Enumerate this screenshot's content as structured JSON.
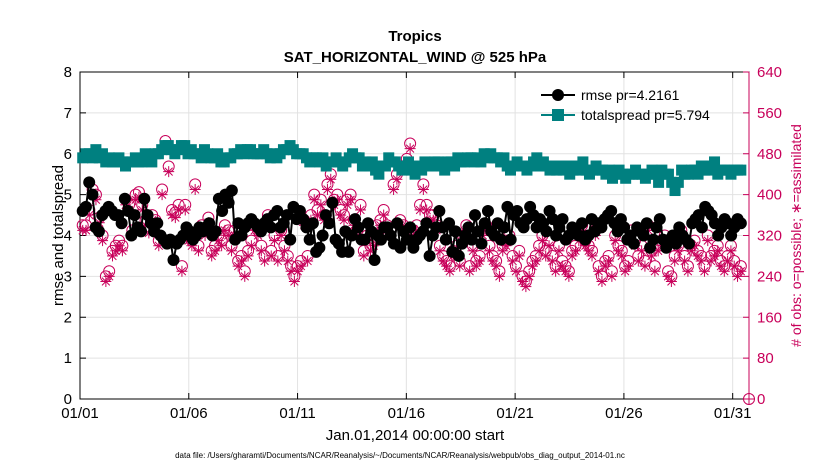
{
  "chart_data": {
    "type": "line",
    "title": "Tropics",
    "subtitle": "SAT_HORIZONTAL_WIND @ 525 hPa",
    "xlabel": "Jan.01,2014 00:00:00 start",
    "ylabel": "rmse and totalspread",
    "ylabel_right": "# of obs: o=possible; ∗=assimilated",
    "footer": "data file: /Users/gharamti/Documents/NCAR/Reanalysis/~/Documents/NCAR/Reanalysis/webpub/obs_diag_output_2014-01.nc",
    "x_unit": "days since Jan 01 00:00",
    "xlim": [
      0,
      30.75
    ],
    "ylim": [
      0,
      8
    ],
    "ylim_right": [
      0,
      640
    ],
    "x_ticks": [
      0,
      5,
      10,
      15,
      20,
      25,
      30
    ],
    "x_tick_labels": [
      "01/01",
      "01/06",
      "01/11",
      "01/16",
      "01/21",
      "01/26",
      "01/31"
    ],
    "y_ticks": [
      0,
      1,
      2,
      3,
      4,
      5,
      6,
      7,
      8
    ],
    "y_ticks_right": [
      0,
      80,
      160,
      240,
      320,
      400,
      480,
      560,
      640
    ],
    "grid": true,
    "legend_position": "top-right",
    "colors": {
      "rmse": "#000000",
      "totalspread": "#008080",
      "obs": "#c8005a"
    },
    "series": [
      {
        "name": "rmse pr=4.2161",
        "color": "#000000",
        "marker": "circle",
        "values": [
          4.6,
          4.7,
          5.3,
          5.0,
          4.2,
          4.1,
          4.5,
          4.6,
          4.7,
          4.6,
          4.5,
          4.5,
          4.3,
          4.9,
          4.6,
          4.0,
          4.5,
          4.2,
          4.1,
          4.9,
          4.5,
          4.3,
          4.1,
          4.3,
          4.0,
          3.9,
          3.8,
          3.9,
          3.4,
          3.8,
          3.9,
          4.0,
          4.2,
          4.1,
          3.9,
          4.0,
          4.2,
          4.1,
          4.2,
          4.3,
          4.0,
          4.1,
          4.9,
          4.6,
          5.0,
          4.8,
          5.1,
          3.9,
          4.3,
          4.0,
          4.2,
          4.3,
          4.4,
          4.3,
          4.2,
          4.1,
          4.3,
          4.4,
          4.2,
          4.5,
          4.6,
          4.2,
          4.3,
          4.5,
          3.9,
          4.7,
          4.4,
          4.6,
          4.4,
          4.2,
          3.9,
          4.3,
          3.6,
          3.7,
          4.0,
          4.5,
          4.3,
          4.8,
          3.9,
          3.8,
          3.6,
          4.1,
          3.6,
          4.0,
          4.4,
          4.2,
          3.9,
          3.9,
          4.3,
          4.1,
          3.4,
          4.0,
          3.9,
          4.2,
          4.2,
          4.0,
          3.8,
          4.3,
          3.7,
          4.1,
          3.9,
          4.2,
          3.7,
          3.9,
          4.0,
          4.1,
          4.3,
          3.5,
          4.0,
          4.2,
          4.6,
          4.2,
          3.9,
          4.3,
          3.6,
          4.1,
          3.5,
          3.8,
          4.0,
          4.2,
          3.9,
          4.5,
          4.1,
          3.8,
          4.3,
          4.6,
          4.1,
          4.0,
          4.3,
          3.9,
          4.2,
          4.7,
          3.9,
          4.5,
          4.6,
          4.3,
          4.2,
          4.4,
          4.7,
          4.5,
          4.2,
          4.4,
          4.3,
          4.1,
          4.6,
          4.4,
          4.0,
          4.2,
          4.4,
          3.9,
          4.0,
          4.2,
          4.1,
          4.0,
          4.3,
          3.9,
          4.0,
          4.4,
          4.1,
          4.3,
          4.2,
          4.4,
          4.5,
          4.6,
          4.3,
          4.1,
          4.4,
          4.2,
          3.9,
          4.0,
          3.8,
          4.2,
          4.1,
          4.0,
          4.3,
          3.7,
          3.9,
          4.2,
          4.4,
          3.9,
          3.7,
          3.9,
          4.0,
          3.8,
          4.2,
          4.0,
          3.9,
          3.8,
          4.3,
          4.4,
          4.5,
          4.2,
          4.7,
          4.6,
          4.5,
          4.3,
          4.0,
          4.2,
          4.4,
          4.3,
          4.0,
          4.2,
          4.4,
          4.3
        ]
      },
      {
        "name": "totalspread pr=5.794",
        "color": "#008080",
        "marker": "square",
        "values": [
          5.9,
          6.0,
          6.0,
          5.9,
          6.1,
          5.9,
          6.0,
          5.8,
          5.9,
          5.8,
          5.8,
          5.9,
          5.8,
          5.7,
          5.8,
          5.8,
          5.9,
          5.8,
          5.8,
          6.0,
          5.9,
          5.8,
          6.0,
          6.0,
          6.1,
          6.2,
          6.2,
          6.1,
          6.0,
          6.1,
          6.2,
          6.2,
          6.0,
          6.1,
          6.0,
          6.0,
          5.9,
          6.1,
          6.0,
          5.9,
          5.9,
          6.0,
          5.8,
          5.8,
          5.9,
          5.9,
          6.0,
          6.0,
          6.1,
          6.0,
          6.1,
          6.1,
          6.0,
          6.0,
          6.0,
          6.1,
          6.0,
          5.9,
          6.0,
          5.9,
          6.0,
          6.1,
          6.1,
          6.2,
          6.1,
          6.0,
          6.0,
          6.0,
          5.9,
          5.8,
          5.9,
          5.9,
          5.8,
          5.9,
          5.7,
          5.8,
          5.8,
          5.9,
          5.8,
          5.7,
          5.8,
          5.9,
          6.0,
          5.9,
          5.9,
          5.7,
          5.8,
          5.7,
          5.8,
          5.6,
          5.5,
          5.7,
          5.7,
          5.9,
          5.8,
          5.8,
          5.7,
          5.6,
          5.7,
          5.8,
          5.6,
          5.5,
          5.7,
          5.6,
          5.8,
          5.7,
          5.7,
          5.8,
          5.8,
          5.7,
          5.6,
          5.8,
          5.8,
          5.7,
          5.9,
          5.8,
          5.8,
          5.9,
          5.9,
          5.8,
          5.9,
          5.8,
          6.0,
          5.9,
          6.0,
          5.9,
          5.9,
          5.8,
          5.9,
          5.7,
          5.6,
          5.7,
          5.8,
          5.7,
          5.7,
          5.6,
          5.7,
          5.8,
          5.9,
          5.7,
          5.8,
          5.7,
          5.6,
          5.7,
          5.6,
          5.7,
          5.6,
          5.7,
          5.5,
          5.6,
          5.7,
          5.6,
          5.8,
          5.6,
          5.5,
          5.6,
          5.7,
          5.6,
          5.6,
          5.5,
          5.6,
          5.4,
          5.5,
          5.6,
          5.5,
          5.4,
          5.5,
          5.5,
          5.6,
          5.5,
          5.5,
          5.4,
          5.5,
          5.6,
          5.5,
          5.3,
          5.6,
          5.5,
          5.5,
          5.3,
          5.1,
          5.3,
          5.6,
          5.5,
          5.5,
          5.6,
          5.6,
          5.5,
          5.7,
          5.6,
          5.6,
          5.7,
          5.8,
          5.5,
          5.6,
          5.6,
          5.6,
          5.5,
          5.6,
          5.6,
          5.6
        ]
      }
    ],
    "obs_series": [
      {
        "name": "obs possible",
        "marker": "open-circle",
        "values": [
          340,
          340,
          370,
          410,
          400,
          355,
          320,
          240,
          250,
          290,
          300,
          310,
          300,
          390,
          380,
          330,
          400,
          405,
          380,
          350,
          335,
          360,
          350,
          310,
          410,
          505,
          455,
          370,
          365,
          380,
          260,
          380,
          320,
          310,
          420,
          300,
          340,
          330,
          355,
          290,
          300,
          320,
          310,
          340,
          330,
          300,
          330,
          270,
          280,
          250,
          290,
          310,
          340,
          330,
          300,
          280,
          360,
          290,
          320,
          280,
          330,
          300,
          280,
          260,
          240,
          260,
          270,
          350,
          280,
          360,
          400,
          370,
          390,
          360,
          420,
          440,
          390,
          400,
          370,
          360,
          390,
          400,
          350,
          330,
          380,
          290,
          320,
          300,
          310,
          340,
          350,
          370,
          340,
          330,
          420,
          440,
          350,
          340,
          470,
          500,
          330,
          340,
          380,
          420,
          380,
          360,
          360,
          340,
          300,
          280,
          270,
          260,
          290,
          300,
          270,
          320,
          340,
          260,
          300,
          270,
          280,
          330,
          340,
          300,
          280,
          270,
          250,
          300,
          310,
          320,
          280,
          260,
          290,
          240,
          230,
          250,
          270,
          280,
          300,
          320,
          290,
          310,
          280,
          260,
          300,
          270,
          260,
          250,
          290,
          300,
          320,
          340,
          310,
          300,
          290,
          330,
          260,
          240,
          270,
          280,
          250,
          320,
          300,
          290,
          260,
          270,
          330,
          310,
          280,
          300,
          270,
          340,
          290,
          260,
          300,
          310,
          320,
          250,
          240,
          280,
          300,
          330,
          280,
          260,
          300,
          310,
          290,
          280,
          260,
          320,
          280,
          290,
          300,
          270,
          260,
          280,
          300,
          270,
          250,
          260
        ]
      },
      {
        "name": "obs assimilated",
        "marker": "asterisk",
        "values": [
          330,
          330,
          360,
          400,
          390,
          345,
          310,
          230,
          240,
          280,
          290,
          300,
          290,
          380,
          370,
          320,
          390,
          395,
          370,
          340,
          325,
          350,
          340,
          300,
          400,
          495,
          445,
          360,
          355,
          370,
          250,
          370,
          310,
          300,
          410,
          290,
          330,
          320,
          345,
          280,
          290,
          310,
          300,
          330,
          320,
          290,
          320,
          260,
          270,
          240,
          280,
          300,
          330,
          320,
          290,
          270,
          350,
          280,
          310,
          270,
          320,
          290,
          270,
          250,
          230,
          250,
          260,
          340,
          270,
          350,
          390,
          360,
          380,
          350,
          410,
          430,
          380,
          390,
          360,
          350,
          380,
          390,
          340,
          320,
          370,
          280,
          310,
          290,
          300,
          330,
          340,
          360,
          330,
          320,
          410,
          430,
          340,
          330,
          460,
          490,
          320,
          330,
          370,
          410,
          370,
          350,
          350,
          330,
          290,
          270,
          260,
          250,
          280,
          290,
          260,
          310,
          330,
          250,
          290,
          260,
          270,
          320,
          330,
          290,
          270,
          260,
          240,
          290,
          300,
          310,
          270,
          250,
          280,
          230,
          220,
          240,
          260,
          270,
          290,
          310,
          280,
          300,
          270,
          250,
          290,
          260,
          250,
          240,
          280,
          290,
          310,
          330,
          300,
          290,
          280,
          320,
          250,
          230,
          260,
          270,
          240,
          310,
          290,
          280,
          250,
          260,
          320,
          300,
          270,
          290,
          260,
          330,
          280,
          250,
          290,
          300,
          310,
          240,
          230,
          270,
          290,
          320,
          270,
          250,
          290,
          300,
          280,
          270,
          250,
          310,
          270,
          280,
          290,
          260,
          250,
          270,
          290,
          260,
          240,
          250
        ]
      }
    ],
    "end_marker": {
      "x": 30.75,
      "y_right": 0
    }
  }
}
